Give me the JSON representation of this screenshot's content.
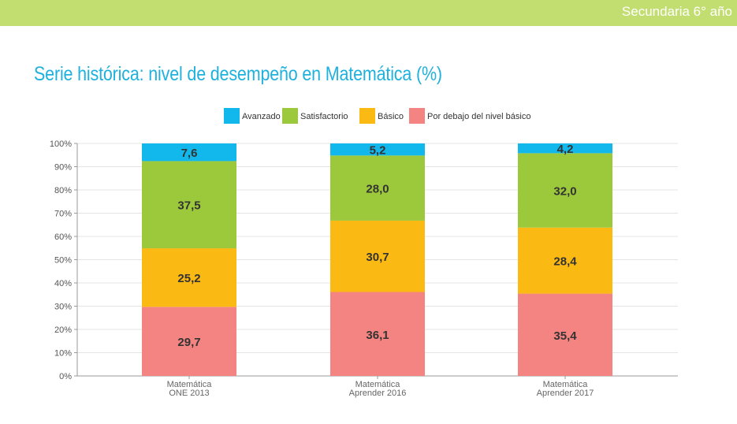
{
  "header": {
    "label": "Secundaria 6° año"
  },
  "chart_data": {
    "type": "bar",
    "stacked": true,
    "title": "Serie histórica: nivel de desempeño en Matemática (%)",
    "categories": [
      [
        "Matemática",
        "ONE 2013"
      ],
      [
        "Matemática",
        "Aprender 2016"
      ],
      [
        "Matemática",
        "Aprender 2017"
      ]
    ],
    "ylim": [
      0,
      100
    ],
    "yticks": [
      "0%",
      "10%",
      "20%",
      "30%",
      "40%",
      "50%",
      "60%",
      "70%",
      "80%",
      "90%",
      "100%"
    ],
    "grid": true,
    "legend_position": "top",
    "series": [
      {
        "name": "Por debajo del nivel básico",
        "color": "#f48481",
        "values": [
          29.7,
          36.1,
          35.4
        ],
        "labels": [
          "29,7",
          "36,1",
          "35,4"
        ]
      },
      {
        "name": "Básico",
        "color": "#fbb913",
        "values": [
          25.2,
          30.7,
          28.4
        ],
        "labels": [
          "25,2",
          "30,7",
          "28,4"
        ]
      },
      {
        "name": "Satisfactorio",
        "color": "#9cc83b",
        "values": [
          37.5,
          28.0,
          32.0
        ],
        "labels": [
          "37,5",
          "28,0",
          "32,0"
        ]
      },
      {
        "name": "Avanzado",
        "color": "#12b8eb",
        "values": [
          7.6,
          5.2,
          4.2
        ],
        "labels": [
          "7,6",
          "5,2",
          "4,2"
        ]
      }
    ],
    "legend_order": [
      "Avanzado",
      "Satisfactorio",
      "Básico",
      "Por debajo del nivel básico"
    ]
  }
}
